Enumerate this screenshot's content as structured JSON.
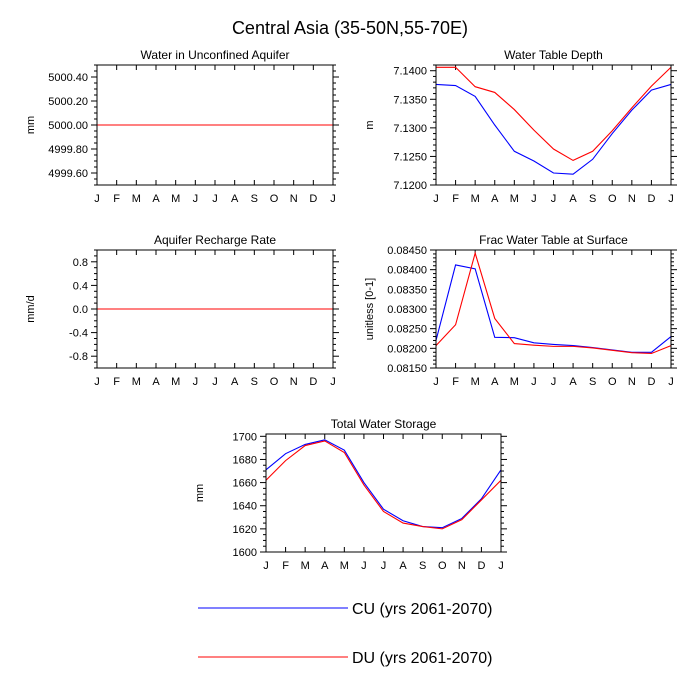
{
  "figure": {
    "title": "Central Asia (35-50N,55-70E)",
    "months": [
      "J",
      "F",
      "M",
      "A",
      "M",
      "J",
      "J",
      "A",
      "S",
      "O",
      "N",
      "D",
      "J"
    ]
  },
  "legend": {
    "items": [
      {
        "label": "CU (yrs 2061-2070)",
        "color": "#0000ff"
      },
      {
        "label": "DU (yrs 2061-2070)",
        "color": "#ff0000"
      }
    ]
  },
  "chart_data": [
    {
      "id": "wa",
      "type": "line",
      "title": "Water in Unconfined Aquifer",
      "ylabel": "mm",
      "ylim": [
        4999.5,
        5000.5
      ],
      "yticks": [
        4999.6,
        4999.8,
        5000.0,
        5000.2,
        5000.4
      ],
      "yminor": [
        4999.5,
        4999.55,
        4999.65,
        4999.7,
        4999.75,
        4999.85,
        4999.9,
        4999.95,
        5000.05,
        5000.1,
        5000.15,
        5000.25,
        5000.3,
        5000.35,
        5000.45,
        5000.5
      ],
      "ydecimals": 2,
      "series": [
        {
          "name": "CU",
          "color": "#0000ff",
          "values": [
            5000,
            5000,
            5000,
            5000,
            5000,
            5000,
            5000,
            5000,
            5000,
            5000,
            5000,
            5000,
            5000
          ]
        },
        {
          "name": "DU",
          "color": "#ff0000",
          "values": [
            5000,
            5000,
            5000,
            5000,
            5000,
            5000,
            5000,
            5000,
            5000,
            5000,
            5000,
            5000,
            5000
          ]
        }
      ]
    },
    {
      "id": "wt",
      "type": "line",
      "title": "Water Table Depth",
      "ylabel": "m",
      "ylim": [
        7.12,
        7.141
      ],
      "yticks": [
        7.12,
        7.125,
        7.13,
        7.135,
        7.14
      ],
      "yminor": [
        7.121,
        7.122,
        7.123,
        7.124,
        7.126,
        7.127,
        7.128,
        7.129,
        7.131,
        7.132,
        7.133,
        7.134,
        7.136,
        7.137,
        7.138,
        7.139,
        7.141
      ],
      "ydecimals": 4,
      "series": [
        {
          "name": "CU",
          "color": "#0000ff",
          "values": [
            7.1376,
            7.1374,
            7.1355,
            7.1305,
            7.1259,
            7.1242,
            7.1221,
            7.1219,
            7.1245,
            7.129,
            7.1331,
            7.1366,
            7.1376
          ]
        },
        {
          "name": "DU",
          "color": "#ff0000",
          "values": [
            7.1406,
            7.1406,
            7.1372,
            7.1362,
            7.1332,
            7.1296,
            7.1263,
            7.1243,
            7.1259,
            7.1295,
            7.1335,
            7.1373,
            7.1406
          ]
        }
      ]
    },
    {
      "id": "qcharge",
      "type": "line",
      "title": "Aquifer Recharge Rate",
      "ylabel": "mm/d",
      "ylim": [
        -1.0,
        1.0
      ],
      "yticks": [
        -0.8,
        -0.4,
        0.0,
        0.4,
        0.8
      ],
      "yminor": [
        -1.0,
        -0.9,
        -0.7,
        -0.6,
        -0.5,
        -0.3,
        -0.2,
        -0.1,
        0.1,
        0.2,
        0.3,
        0.5,
        0.6,
        0.7,
        0.9,
        1.0
      ],
      "ydecimals": 1,
      "series": [
        {
          "name": "CU",
          "color": "#0000ff",
          "values": [
            0,
            0,
            0,
            0,
            0,
            0,
            0,
            0,
            0,
            0,
            0,
            0,
            0
          ]
        },
        {
          "name": "DU",
          "color": "#ff0000",
          "values": [
            0,
            0,
            0,
            0,
            0,
            0,
            0,
            0,
            0,
            0,
            0,
            0,
            0
          ]
        }
      ]
    },
    {
      "id": "fwet",
      "type": "line",
      "title": "Frac Water Table at Surface",
      "ylabel": "unitless [0-1]",
      "ylim": [
        0.0815,
        0.0845
      ],
      "yticks": [
        0.0815,
        0.082,
        0.0825,
        0.083,
        0.0835,
        0.084,
        0.0845
      ],
      "yminor": [
        0.0816,
        0.0817,
        0.0818,
        0.0819,
        0.0821,
        0.0822,
        0.0823,
        0.0824,
        0.0826,
        0.0827,
        0.0828,
        0.0829,
        0.0831,
        0.0832,
        0.0833,
        0.0834,
        0.0836,
        0.0837,
        0.0838,
        0.0839,
        0.0841,
        0.0842,
        0.0843,
        0.0844
      ],
      "ydecimals": 5,
      "series": [
        {
          "name": "CU",
          "color": "#0000ff",
          "values": [
            0.0822,
            0.08412,
            0.08402,
            0.08228,
            0.08227,
            0.08214,
            0.0821,
            0.08207,
            0.08202,
            0.08196,
            0.0819,
            0.0819,
            0.0823
          ]
        },
        {
          "name": "DU",
          "color": "#ff0000",
          "values": [
            0.08207,
            0.0826,
            0.08442,
            0.08276,
            0.08212,
            0.08208,
            0.08205,
            0.08205,
            0.08201,
            0.08195,
            0.08189,
            0.08187,
            0.08207
          ]
        }
      ]
    },
    {
      "id": "tws",
      "type": "line",
      "title": "Total Water Storage",
      "ylabel": "mm",
      "ylim": [
        1600,
        1702
      ],
      "yticks": [
        1600,
        1620,
        1640,
        1660,
        1680,
        1700
      ],
      "yminor": [
        1605,
        1610,
        1615,
        1625,
        1630,
        1635,
        1645,
        1650,
        1655,
        1665,
        1670,
        1675,
        1685,
        1690,
        1695
      ],
      "ydecimals": 0,
      "series": [
        {
          "name": "CU",
          "color": "#0000ff",
          "values": [
            1671,
            1685,
            1693,
            1697,
            1688,
            1660,
            1637,
            1627,
            1622,
            1621,
            1629,
            1646,
            1671
          ]
        },
        {
          "name": "DU",
          "color": "#ff0000",
          "values": [
            1662,
            1679,
            1692,
            1696,
            1686,
            1658,
            1635,
            1625,
            1622,
            1620,
            1628,
            1645,
            1662
          ]
        }
      ]
    }
  ]
}
